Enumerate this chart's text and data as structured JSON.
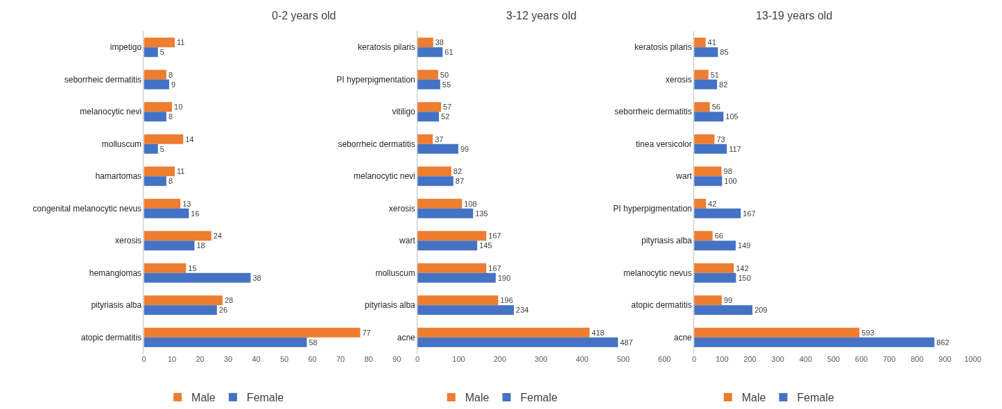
{
  "chart_data": [
    {
      "type": "bar",
      "orientation": "horizontal",
      "title": "0-2 years old",
      "categories": [
        "impetigo",
        "seborrheic dermatitis",
        "melanocytic nevi",
        "molluscum",
        "hamartomas",
        "congenital melanocytic nevus",
        "xerosis",
        "hemangiomas",
        "pityriasis alba",
        "atopic dermatitis"
      ],
      "series": [
        {
          "name": "Male",
          "color": "#ed7d31",
          "values": [
            11,
            8,
            10,
            14,
            11,
            13,
            24,
            15,
            28,
            77
          ]
        },
        {
          "name": "Female",
          "color": "#4472c4",
          "values": [
            5,
            9,
            8,
            5,
            8,
            16,
            18,
            38,
            26,
            58
          ]
        }
      ],
      "xlim": [
        0,
        90
      ],
      "xticks": [
        0,
        10,
        20,
        30,
        40,
        50,
        60,
        70,
        80,
        90
      ],
      "data_labels": true,
      "legend": "bottom",
      "grid": false
    },
    {
      "type": "bar",
      "orientation": "horizontal",
      "title": "3-12 years old",
      "categories": [
        "keratosis pilaris",
        "PI hyperpigmentation",
        "vitiligo",
        "seborrheic dermatitis",
        "melanocytic nevi",
        "xerosis",
        "wart",
        "molluscum",
        "pityriasis alba",
        "acne"
      ],
      "series": [
        {
          "name": "Male",
          "color": "#ed7d31",
          "values": [
            38,
            50,
            57,
            37,
            82,
            108,
            167,
            167,
            196,
            418
          ]
        },
        {
          "name": "Female",
          "color": "#4472c4",
          "values": [
            61,
            55,
            52,
            99,
            87,
            135,
            145,
            190,
            234,
            487
          ]
        }
      ],
      "xlim": [
        0,
        600
      ],
      "xticks": [
        0,
        100,
        200,
        300,
        400,
        500,
        600
      ],
      "data_labels": true,
      "legend": "bottom",
      "grid": false
    },
    {
      "type": "bar",
      "orientation": "horizontal",
      "title": "13-19 years old",
      "categories": [
        "keratosis pilaris",
        "xerosis",
        "seborrheic dermatitis",
        "tinea versicolor",
        "wart",
        "PI hyperpigmentation",
        "pityriasis alba",
        "melanocytic nevus",
        "atopic dermatitis",
        "acne"
      ],
      "series": [
        {
          "name": "Male",
          "color": "#ed7d31",
          "values": [
            41,
            51,
            56,
            73,
            98,
            42,
            66,
            142,
            99,
            593
          ]
        },
        {
          "name": "Female",
          "color": "#4472c4",
          "values": [
            85,
            82,
            105,
            117,
            100,
            167,
            149,
            150,
            209,
            862
          ]
        }
      ],
      "xlim": [
        0,
        1000
      ],
      "xticks": [
        0,
        100,
        200,
        300,
        400,
        500,
        600,
        700,
        800,
        900,
        1000
      ],
      "data_labels": true,
      "legend": "bottom",
      "grid": false
    }
  ]
}
